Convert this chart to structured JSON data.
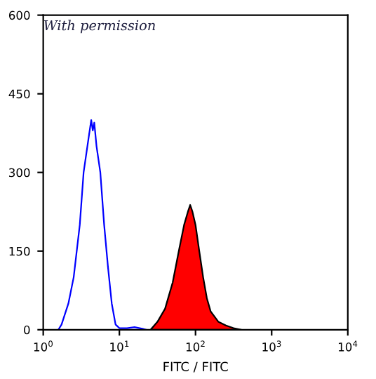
{
  "chart_data": {
    "type": "line",
    "xlabel": "FITC / FITC",
    "annotations": [
      "With permission"
    ],
    "log": "x",
    "grid": false,
    "xlim": [
      1,
      10000
    ],
    "xticks": [
      {
        "value": 1,
        "label": "10$^{0}$"
      },
      {
        "value": 10,
        "label": "10$^{1}$"
      },
      {
        "value": 100,
        "label": "10$^{2}$"
      },
      {
        "value": 1000,
        "label": "10$^{3}$"
      },
      {
        "value": 10000,
        "label": "10$^{4}$"
      }
    ],
    "ylim": [
      0,
      600
    ],
    "yticks": [
      0,
      150,
      300,
      450,
      600
    ],
    "series": [
      {
        "color": "#0000ff",
        "x": [
          1.58,
          1.74,
          2.14,
          2.51,
          3.02,
          3.39,
          3.98,
          4.27,
          4.47,
          4.68,
          5.01,
          5.62,
          6.31,
          7.08,
          7.94,
          8.91,
          10,
          12.6,
          15.8,
          20,
          22.4
        ],
        "values": [
          0,
          10,
          50,
          100,
          200,
          300,
          370,
          400,
          380,
          395,
          350,
          300,
          200,
          120,
          50,
          10,
          3,
          3,
          5,
          2,
          0
        ]
      },
      {
        "type": "area",
        "color": "#ff0000",
        "x": [
          25.7,
          31.6,
          39.8,
          50.1,
          60.3,
          70.8,
          79.4,
          85.1,
          91.2,
          100,
          112,
          126,
          141,
          158,
          200,
          251,
          316,
          398
        ],
        "values": [
          0,
          15,
          40,
          90,
          150,
          200,
          225,
          238,
          225,
          200,
          150,
          100,
          60,
          35,
          15,
          8,
          3,
          0
        ]
      }
    ]
  }
}
